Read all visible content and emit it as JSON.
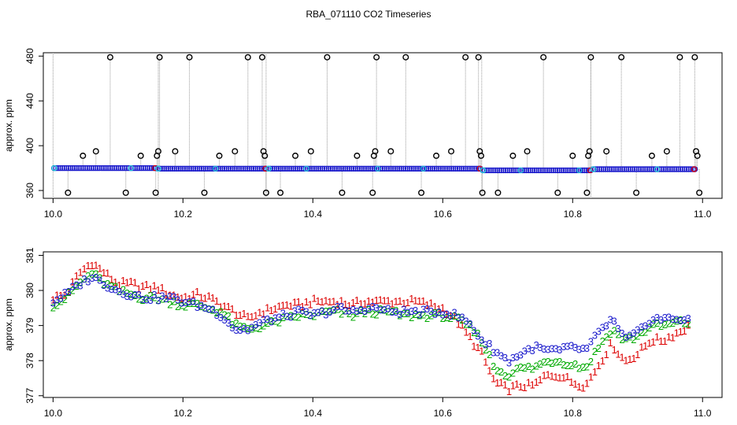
{
  "figure": {
    "title": "RBA_071110  CO2 Timeseries"
  },
  "chart_data": [
    {
      "type": "scatter",
      "name": "top-panel",
      "ylabel": "approx. ppm",
      "xlabel": "",
      "xlim": [
        9.985,
        11.03
      ],
      "ylim": [
        353,
        483
      ],
      "x_ticks": [
        "10.0",
        "10.2",
        "10.4",
        "10.6",
        "10.8",
        "11.0"
      ],
      "y_ticks": [
        "360",
        "400",
        "440",
        "480"
      ],
      "baseline_segments": [
        {
          "x_start": 10.0,
          "x_end": 10.16,
          "value": 380
        },
        {
          "x_start": 10.16,
          "x_end": 10.33,
          "value": 379.5
        },
        {
          "x_start": 10.33,
          "x_end": 10.66,
          "value": 379.5
        },
        {
          "x_start": 10.66,
          "x_end": 10.83,
          "value": 378
        },
        {
          "x_start": 10.83,
          "x_end": 10.99,
          "value": 379
        }
      ],
      "spikes": [
        {
          "x": 10.023,
          "value": 358
        },
        {
          "x": 10.046,
          "value": 391
        },
        {
          "x": 10.066,
          "value": 395
        },
        {
          "x": 10.088,
          "value": 479
        },
        {
          "x": 10.112,
          "value": 358
        },
        {
          "x": 10.135,
          "value": 391
        },
        {
          "x": 10.158,
          "value": 358
        },
        {
          "x": 10.16,
          "value": 391
        },
        {
          "x": 10.162,
          "value": 395
        },
        {
          "x": 10.164,
          "value": 479
        },
        {
          "x": 10.188,
          "value": 395
        },
        {
          "x": 10.21,
          "value": 479
        },
        {
          "x": 10.233,
          "value": 358
        },
        {
          "x": 10.256,
          "value": 391
        },
        {
          "x": 10.28,
          "value": 395
        },
        {
          "x": 10.3,
          "value": 479
        },
        {
          "x": 10.322,
          "value": 479
        },
        {
          "x": 10.324,
          "value": 395
        },
        {
          "x": 10.326,
          "value": 391
        },
        {
          "x": 10.328,
          "value": 358
        },
        {
          "x": 10.35,
          "value": 358
        },
        {
          "x": 10.373,
          "value": 391
        },
        {
          "x": 10.397,
          "value": 395
        },
        {
          "x": 10.422,
          "value": 479
        },
        {
          "x": 10.445,
          "value": 358
        },
        {
          "x": 10.468,
          "value": 391
        },
        {
          "x": 10.492,
          "value": 358
        },
        {
          "x": 10.494,
          "value": 391
        },
        {
          "x": 10.496,
          "value": 395
        },
        {
          "x": 10.498,
          "value": 479
        },
        {
          "x": 10.52,
          "value": 395
        },
        {
          "x": 10.543,
          "value": 479
        },
        {
          "x": 10.567,
          "value": 358
        },
        {
          "x": 10.59,
          "value": 391
        },
        {
          "x": 10.613,
          "value": 395
        },
        {
          "x": 10.635,
          "value": 479
        },
        {
          "x": 10.655,
          "value": 479
        },
        {
          "x": 10.657,
          "value": 395
        },
        {
          "x": 10.659,
          "value": 391
        },
        {
          "x": 10.661,
          "value": 358
        },
        {
          "x": 10.685,
          "value": 358
        },
        {
          "x": 10.708,
          "value": 391
        },
        {
          "x": 10.73,
          "value": 395
        },
        {
          "x": 10.755,
          "value": 479
        },
        {
          "x": 10.777,
          "value": 358
        },
        {
          "x": 10.8,
          "value": 391
        },
        {
          "x": 10.822,
          "value": 358
        },
        {
          "x": 10.824,
          "value": 391
        },
        {
          "x": 10.826,
          "value": 395
        },
        {
          "x": 10.828,
          "value": 479
        },
        {
          "x": 10.852,
          "value": 395
        },
        {
          "x": 10.875,
          "value": 479
        },
        {
          "x": 10.898,
          "value": 358
        },
        {
          "x": 10.922,
          "value": 391
        },
        {
          "x": 10.945,
          "value": 395
        },
        {
          "x": 10.965,
          "value": 479
        },
        {
          "x": 10.988,
          "value": 479
        },
        {
          "x": 10.99,
          "value": 395
        },
        {
          "x": 10.992,
          "value": 391
        },
        {
          "x": 10.995,
          "value": 358
        }
      ],
      "gap_lines_x": [
        10.0,
        10.162,
        10.328,
        10.66,
        10.828
      ],
      "colors": {
        "black": "#000000",
        "blue": "#1c1ccc",
        "cyan": "#22c8d8",
        "red": "#dd0000",
        "green": "#00aa00",
        "grey": "#9a9a9a"
      }
    },
    {
      "type": "line",
      "name": "bottom-panel",
      "ylabel": "approx. ppm",
      "xlabel": "",
      "xlim": [
        9.985,
        11.03
      ],
      "ylim": [
        376.95,
        381.1
      ],
      "x_ticks": [
        "10.0",
        "10.2",
        "10.4",
        "10.6",
        "10.8",
        "11.0"
      ],
      "y_ticks": [
        "377",
        "378",
        "379",
        "380",
        "381"
      ],
      "x": [
        10.0,
        10.02,
        10.04,
        10.06,
        10.08,
        10.1,
        10.12,
        10.14,
        10.16,
        10.18,
        10.2,
        10.22,
        10.24,
        10.26,
        10.28,
        10.3,
        10.32,
        10.34,
        10.36,
        10.38,
        10.4,
        10.42,
        10.44,
        10.46,
        10.48,
        10.5,
        10.52,
        10.54,
        10.56,
        10.58,
        10.6,
        10.62,
        10.64,
        10.66,
        10.68,
        10.7,
        10.72,
        10.74,
        10.76,
        10.78,
        10.8,
        10.82,
        10.84,
        10.86,
        10.88,
        10.9,
        10.92,
        10.94,
        10.96,
        10.98
      ],
      "series": [
        {
          "name": "1",
          "marker": "1",
          "color": "#dd0000",
          "values": [
            379.8,
            379.9,
            380.5,
            380.8,
            380.5,
            380.2,
            380.2,
            380.1,
            380.1,
            379.9,
            379.8,
            379.9,
            379.8,
            379.6,
            379.4,
            379.2,
            379.4,
            379.5,
            379.6,
            379.6,
            379.7,
            379.7,
            379.7,
            379.6,
            379.7,
            379.7,
            379.7,
            379.7,
            379.7,
            379.6,
            379.5,
            379.2,
            378.7,
            378.2,
            377.4,
            377.2,
            377.3,
            377.3,
            377.6,
            377.6,
            377.4,
            377.3,
            377.9,
            378.5,
            378.0,
            378.2,
            378.6,
            378.6,
            378.8,
            379.0
          ]
        },
        {
          "name": "2",
          "marker": "2",
          "color": "#00aa00",
          "values": [
            379.6,
            379.8,
            380.2,
            380.5,
            380.2,
            380.0,
            379.9,
            379.8,
            379.8,
            379.7,
            379.6,
            379.6,
            379.5,
            379.4,
            379.0,
            378.9,
            379.0,
            379.1,
            379.2,
            379.3,
            379.3,
            379.4,
            379.4,
            379.3,
            379.4,
            379.4,
            379.4,
            379.3,
            379.3,
            379.3,
            379.3,
            379.2,
            379.0,
            378.6,
            377.8,
            377.6,
            377.8,
            377.8,
            378.0,
            378.0,
            377.9,
            377.8,
            378.4,
            378.9,
            378.6,
            378.7,
            379.0,
            379.0,
            379.1,
            379.1
          ]
        },
        {
          "name": "3",
          "marker": "3",
          "color": "#1c1ccc",
          "values": [
            379.7,
            379.9,
            380.2,
            380.4,
            380.2,
            380.0,
            379.9,
            379.8,
            379.8,
            379.8,
            379.7,
            379.6,
            379.5,
            379.3,
            378.9,
            378.9,
            379.1,
            379.2,
            379.3,
            379.4,
            379.3,
            379.4,
            379.5,
            379.4,
            379.5,
            379.5,
            379.4,
            379.4,
            379.4,
            379.4,
            379.4,
            379.3,
            379.1,
            378.6,
            378.3,
            378.0,
            378.2,
            378.4,
            378.3,
            378.3,
            378.4,
            378.3,
            378.8,
            379.2,
            378.6,
            378.8,
            379.2,
            379.2,
            379.2,
            379.2
          ]
        }
      ]
    }
  ]
}
